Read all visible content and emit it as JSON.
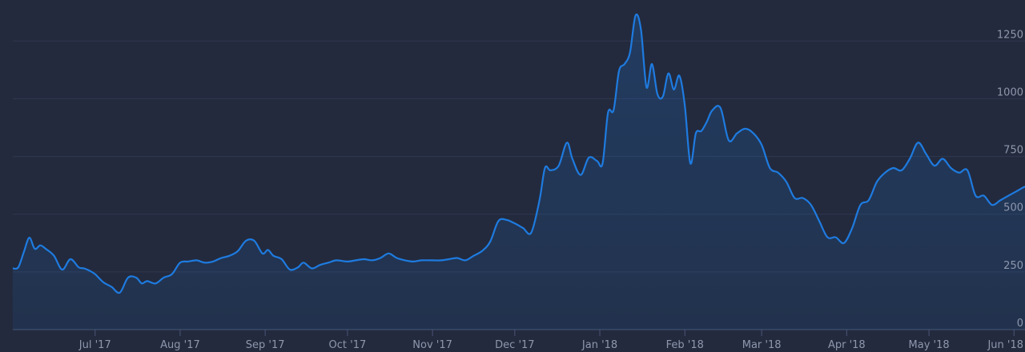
{
  "chart_data": {
    "type": "area",
    "title": "",
    "xlabel": "",
    "ylabel": "",
    "x_range": [
      "2017-06-01",
      "2018-06-05"
    ],
    "ylim": [
      0,
      1400
    ],
    "y_ticks": [
      "0",
      "250",
      "500",
      "750",
      "1000",
      "1250"
    ],
    "y_tick_values": [
      0,
      250,
      500,
      750,
      1000,
      1250
    ],
    "y_axis_position": "right",
    "grid": "horizontal",
    "x_ticks": [
      {
        "label": "Jul '17",
        "date": "2017-07-01"
      },
      {
        "label": "Aug '17",
        "date": "2017-08-01"
      },
      {
        "label": "Sep '17",
        "date": "2017-09-01"
      },
      {
        "label": "Oct '17",
        "date": "2017-10-01"
      },
      {
        "label": "Nov '17",
        "date": "2017-11-01"
      },
      {
        "label": "Dec '17",
        "date": "2017-12-01"
      },
      {
        "label": "Jan '18",
        "date": "2018-01-01"
      },
      {
        "label": "Feb '18",
        "date": "2018-02-01"
      },
      {
        "label": "Mar '18",
        "date": "2018-03-01"
      },
      {
        "label": "Apr '18",
        "date": "2018-04-01"
      },
      {
        "label": "May '18",
        "date": "2018-05-01"
      },
      {
        "label": "Jun '18",
        "date": "2018-06-01"
      }
    ],
    "colors": {
      "line": "#1e7be0",
      "fill": "#1e7be0",
      "background": "#232a3d",
      "grid": "#2f3850",
      "text": "#8e97ad"
    },
    "series": [
      {
        "x": [
          "2017-06-01",
          "2017-06-03",
          "2017-06-05",
          "2017-06-07",
          "2017-06-09",
          "2017-06-11",
          "2017-06-13",
          "2017-06-16",
          "2017-06-19",
          "2017-06-22",
          "2017-06-25",
          "2017-06-27",
          "2017-06-29",
          "2017-07-01",
          "2017-07-04",
          "2017-07-07",
          "2017-07-10",
          "2017-07-13",
          "2017-07-16",
          "2017-07-18",
          "2017-07-20",
          "2017-07-23",
          "2017-07-26",
          "2017-07-29",
          "2017-08-01",
          "2017-08-04",
          "2017-08-07",
          "2017-08-10",
          "2017-08-13",
          "2017-08-16",
          "2017-08-19",
          "2017-08-22",
          "2017-08-25",
          "2017-08-28",
          "2017-08-31",
          "2017-09-02",
          "2017-09-04",
          "2017-09-07",
          "2017-09-10",
          "2017-09-13",
          "2017-09-15",
          "2017-09-18",
          "2017-09-21",
          "2017-09-24",
          "2017-09-27",
          "2017-10-01",
          "2017-10-04",
          "2017-10-07",
          "2017-10-10",
          "2017-10-13",
          "2017-10-16",
          "2017-10-19",
          "2017-10-22",
          "2017-10-25",
          "2017-10-28",
          "2017-11-01",
          "2017-11-04",
          "2017-11-07",
          "2017-11-10",
          "2017-11-13",
          "2017-11-16",
          "2017-11-19",
          "2017-11-22",
          "2017-11-25",
          "2017-11-28",
          "2017-12-01",
          "2017-12-04",
          "2017-12-07",
          "2017-12-10",
          "2017-12-12",
          "2017-12-14",
          "2017-12-17",
          "2017-12-20",
          "2017-12-22",
          "2017-12-25",
          "2017-12-28",
          "2017-12-31",
          "2018-01-02",
          "2018-01-04",
          "2018-01-06",
          "2018-01-08",
          "2018-01-10",
          "2018-01-12",
          "2018-01-14",
          "2018-01-16",
          "2018-01-18",
          "2018-01-20",
          "2018-01-22",
          "2018-01-24",
          "2018-01-26",
          "2018-01-28",
          "2018-01-30",
          "2018-02-01",
          "2018-02-03",
          "2018-02-05",
          "2018-02-07",
          "2018-02-09",
          "2018-02-11",
          "2018-02-14",
          "2018-02-17",
          "2018-02-20",
          "2018-02-23",
          "2018-02-26",
          "2018-03-01",
          "2018-03-04",
          "2018-03-07",
          "2018-03-10",
          "2018-03-13",
          "2018-03-16",
          "2018-03-19",
          "2018-03-22",
          "2018-03-25",
          "2018-03-28",
          "2018-03-31",
          "2018-04-03",
          "2018-04-06",
          "2018-04-09",
          "2018-04-12",
          "2018-04-15",
          "2018-04-18",
          "2018-04-21",
          "2018-04-24",
          "2018-04-27",
          "2018-04-30",
          "2018-05-03",
          "2018-05-06",
          "2018-05-09",
          "2018-05-12",
          "2018-05-15",
          "2018-05-18",
          "2018-05-21",
          "2018-05-24",
          "2018-05-27",
          "2018-05-30",
          "2018-06-02",
          "2018-06-05"
        ],
        "values": [
          265,
          270,
          335,
          398,
          350,
          365,
          350,
          320,
          260,
          305,
          270,
          265,
          255,
          240,
          205,
          185,
          160,
          225,
          225,
          200,
          210,
          200,
          225,
          240,
          290,
          295,
          300,
          290,
          295,
          310,
          320,
          340,
          385,
          385,
          330,
          345,
          320,
          305,
          260,
          270,
          290,
          265,
          280,
          290,
          300,
          295,
          300,
          305,
          300,
          310,
          330,
          310,
          300,
          295,
          300,
          300,
          300,
          305,
          310,
          300,
          320,
          340,
          380,
          470,
          475,
          460,
          440,
          420,
          560,
          700,
          690,
          710,
          810,
          740,
          670,
          745,
          730,
          720,
          940,
          950,
          1120,
          1150,
          1200,
          1360,
          1300,
          1050,
          1150,
          1020,
          1010,
          1110,
          1040,
          1100,
          970,
          720,
          850,
          860,
          900,
          950,
          960,
          820,
          850,
          870,
          850,
          800,
          700,
          680,
          640,
          570,
          570,
          540,
          470,
          400,
          400,
          375,
          440,
          540,
          560,
          640,
          680,
          700,
          690,
          740,
          810,
          760,
          710,
          740,
          700,
          680,
          690,
          580,
          580,
          540,
          560,
          580,
          600,
          620
        ]
      }
    ]
  }
}
